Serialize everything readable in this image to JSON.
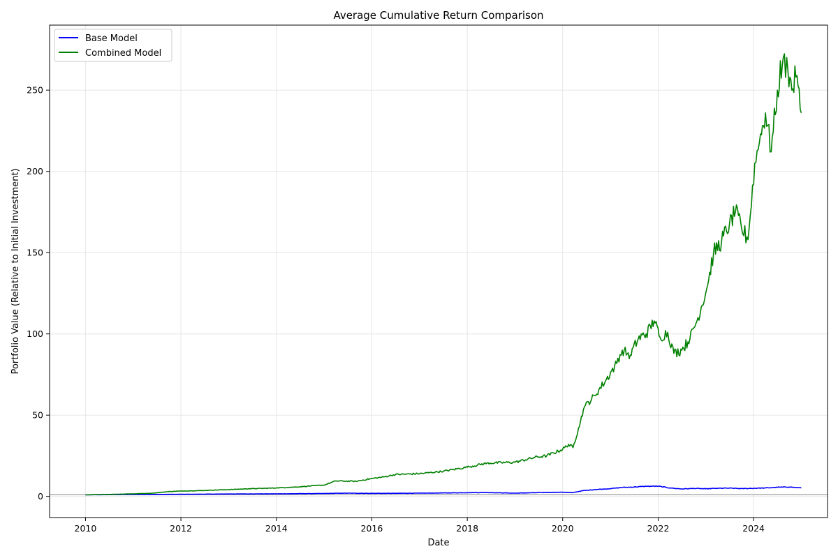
{
  "chart_data": {
    "type": "line",
    "title": "Average Cumulative Return Comparison",
    "xlabel": "Date",
    "ylabel": "Portfolio Value (Relative to Initial Investment)",
    "xlim": [
      "2009-04-01",
      "2025-07-20"
    ],
    "ylim": [
      -13,
      290
    ],
    "x_ticks": [
      "2010",
      "2012",
      "2014",
      "2016",
      "2018",
      "2020",
      "2022",
      "2024"
    ],
    "y_ticks": [
      0,
      50,
      100,
      150,
      200,
      250
    ],
    "grid": true,
    "legend_position": "top-left",
    "reference_line": {
      "y": 1,
      "color": "#999999"
    },
    "series": [
      {
        "name": "Base Model",
        "color": "#0000ff",
        "x": [
          "2010-01-01",
          "2011-01-01",
          "2012-01-01",
          "2013-01-01",
          "2014-01-01",
          "2015-01-01",
          "2015-06-01",
          "2016-01-01",
          "2016-06-01",
          "2017-01-01",
          "2017-06-01",
          "2018-01-01",
          "2018-06-01",
          "2019-01-01",
          "2019-06-01",
          "2020-01-01",
          "2020-03-15",
          "2020-06-01",
          "2020-09-01",
          "2021-01-01",
          "2021-04-01",
          "2021-07-01",
          "2021-10-01",
          "2022-01-01",
          "2022-04-01",
          "2022-07-01",
          "2022-10-01",
          "2023-01-01",
          "2023-04-01",
          "2023-07-01",
          "2023-10-01",
          "2024-01-01",
          "2024-04-01",
          "2024-07-01",
          "2024-10-01",
          "2024-12-31"
        ],
        "values": [
          1.0,
          1.2,
          1.3,
          1.5,
          1.6,
          1.8,
          2.0,
          1.9,
          1.9,
          2.0,
          2.1,
          2.3,
          2.4,
          2.0,
          2.3,
          2.6,
          2.3,
          3.5,
          4.2,
          4.8,
          5.5,
          5.8,
          6.2,
          6.3,
          5.2,
          4.6,
          4.9,
          4.7,
          5.0,
          5.1,
          4.8,
          5.0,
          5.2,
          5.6,
          5.8,
          5.2
        ]
      },
      {
        "name": "Combined Model",
        "color": "#008000",
        "x": [
          "2010-01-01",
          "2010-06-01",
          "2011-01-01",
          "2011-06-01",
          "2011-10-01",
          "2012-01-01",
          "2012-06-01",
          "2013-01-01",
          "2013-06-01",
          "2014-01-01",
          "2014-06-01",
          "2015-01-01",
          "2015-04-01",
          "2015-09-01",
          "2016-01-01",
          "2016-04-01",
          "2016-07-01",
          "2017-01-01",
          "2017-07-01",
          "2018-01-01",
          "2018-06-01",
          "2019-01-01",
          "2019-06-01",
          "2019-09-01",
          "2020-01-01",
          "2020-02-15",
          "2020-03-20",
          "2020-05-01",
          "2020-06-15",
          "2020-09-01",
          "2020-12-01",
          "2021-02-01",
          "2021-04-01",
          "2021-06-01",
          "2021-08-01",
          "2021-10-01",
          "2021-12-01",
          "2022-01-15",
          "2022-03-15",
          "2022-05-01",
          "2022-07-01",
          "2022-09-01",
          "2022-11-01",
          "2023-01-15",
          "2023-03-01",
          "2023-05-01",
          "2023-07-01",
          "2023-08-15",
          "2023-10-01",
          "2023-11-20",
          "2024-01-10",
          "2024-02-15",
          "2024-04-01",
          "2024-05-15",
          "2024-07-01",
          "2024-08-15",
          "2024-09-20",
          "2024-10-20",
          "2024-11-20",
          "2024-12-31"
        ],
        "values": [
          1.0,
          1.2,
          1.6,
          2.0,
          3.0,
          3.3,
          3.6,
          4.2,
          4.7,
          5.2,
          5.8,
          7.0,
          9.5,
          9.3,
          11.0,
          12.0,
          13.5,
          14.0,
          15.5,
          18.0,
          20.5,
          21.0,
          24.0,
          25.0,
          29.0,
          32.0,
          30.0,
          42.0,
          55.0,
          62.0,
          72.0,
          80.0,
          90.0,
          87.0,
          97.0,
          100.0,
          108.0,
          98.0,
          101.0,
          88.0,
          90.0,
          97.0,
          110.0,
          130.0,
          150.0,
          157.0,
          168.0,
          175.0,
          165.0,
          158.0,
          205.0,
          218.0,
          236.0,
          212.0,
          250.0,
          270.0,
          262.0,
          250.0,
          258.0,
          236.0
        ]
      }
    ]
  }
}
